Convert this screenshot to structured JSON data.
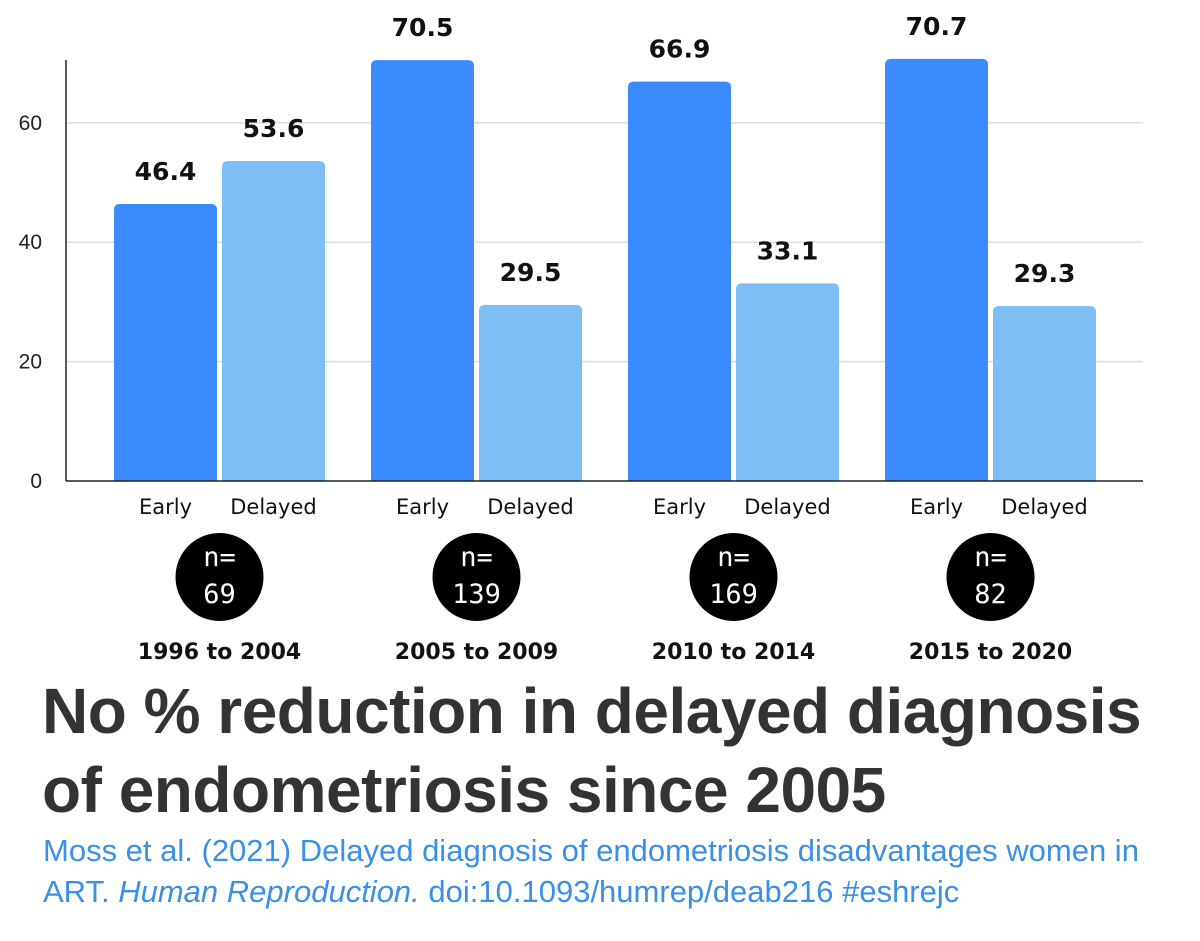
{
  "chart_data": {
    "type": "bar",
    "groups": [
      {
        "period": "1996 to 2004",
        "n_prefix": "n=",
        "n_value": "69"
      },
      {
        "period": "2005 to 2009",
        "n_prefix": "n=",
        "n_value": "139"
      },
      {
        "period": "2010 to 2014",
        "n_prefix": "n=",
        "n_value": "169"
      },
      {
        "period": "2015 to 2020",
        "n_prefix": "n=",
        "n_value": "82"
      }
    ],
    "series": [
      {
        "name": "Early",
        "color": "#3b8bff",
        "values": [
          46.4,
          70.5,
          66.9,
          70.7
        ]
      },
      {
        "name": "Delayed",
        "color": "#7dbef5",
        "values": [
          53.6,
          29.5,
          33.1,
          29.3
        ]
      }
    ],
    "yticks": [
      0,
      20,
      40,
      60
    ],
    "ylim": [
      0,
      70.7
    ],
    "grid": true
  },
  "headline": {
    "line1": "No % reduction in delayed diagnosis",
    "line2": "of endometriosis since 2005"
  },
  "citation": {
    "part1": "Moss et al. (2021) Delayed diagnosis of endometriosis disadvantages women in ART. ",
    "journal": "Human Reproduction.",
    "part2": " doi:10.1093/humrep/deab216   #eshrejc"
  },
  "colors": {
    "text_dark": "#333333",
    "link_blue": "#3a8fe6"
  }
}
